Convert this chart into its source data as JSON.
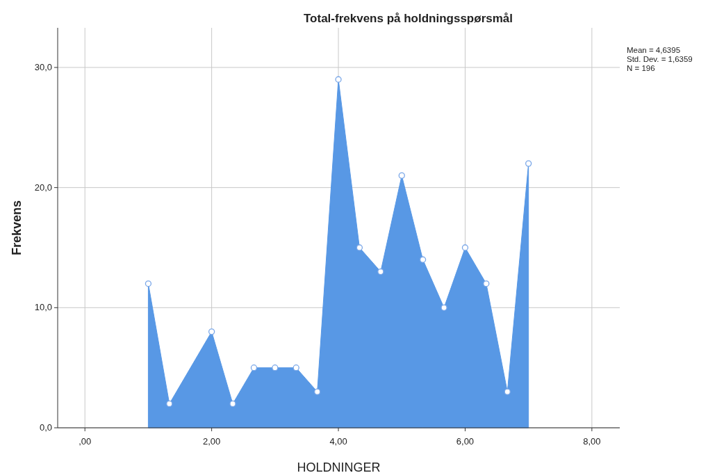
{
  "chart_data": {
    "type": "area",
    "title": "Total-frekvens på holdningsspørsmål",
    "xlabel": "HOLDNINGER",
    "ylabel": "Frekvens",
    "x": [
      1,
      1.333,
      2,
      2.333,
      2.667,
      3,
      3.333,
      3.667,
      4,
      4.333,
      4.667,
      5,
      5.333,
      5.667,
      6,
      6.333,
      6.667,
      7
    ],
    "series": [
      {
        "color": "#5898e5",
        "values": [
          12,
          2,
          8,
          2,
          5,
          5,
          5,
          3,
          29,
          15,
          13,
          21,
          14,
          10,
          15,
          12,
          3,
          22
        ]
      }
    ],
    "xlim": [
      -0.43,
      8.44
    ],
    "ylim": [
      0,
      33.3
    ],
    "xticks": [
      {
        "value": 0,
        "label": ",00"
      },
      {
        "value": 2,
        "label": "2,00"
      },
      {
        "value": 4,
        "label": "4,00"
      },
      {
        "value": 6,
        "label": "6,00"
      },
      {
        "value": 8,
        "label": "8,00"
      }
    ],
    "yticks": [
      {
        "value": 0,
        "label": "0,0"
      },
      {
        "value": 10,
        "label": "10,0"
      },
      {
        "value": 20,
        "label": "20,0"
      },
      {
        "value": 30,
        "label": "30,0"
      }
    ],
    "grid": true,
    "marker": "circle",
    "annotations": [
      "Mean = 4,6395",
      "Std. Dev. = 1,6359",
      "N = 196"
    ]
  }
}
